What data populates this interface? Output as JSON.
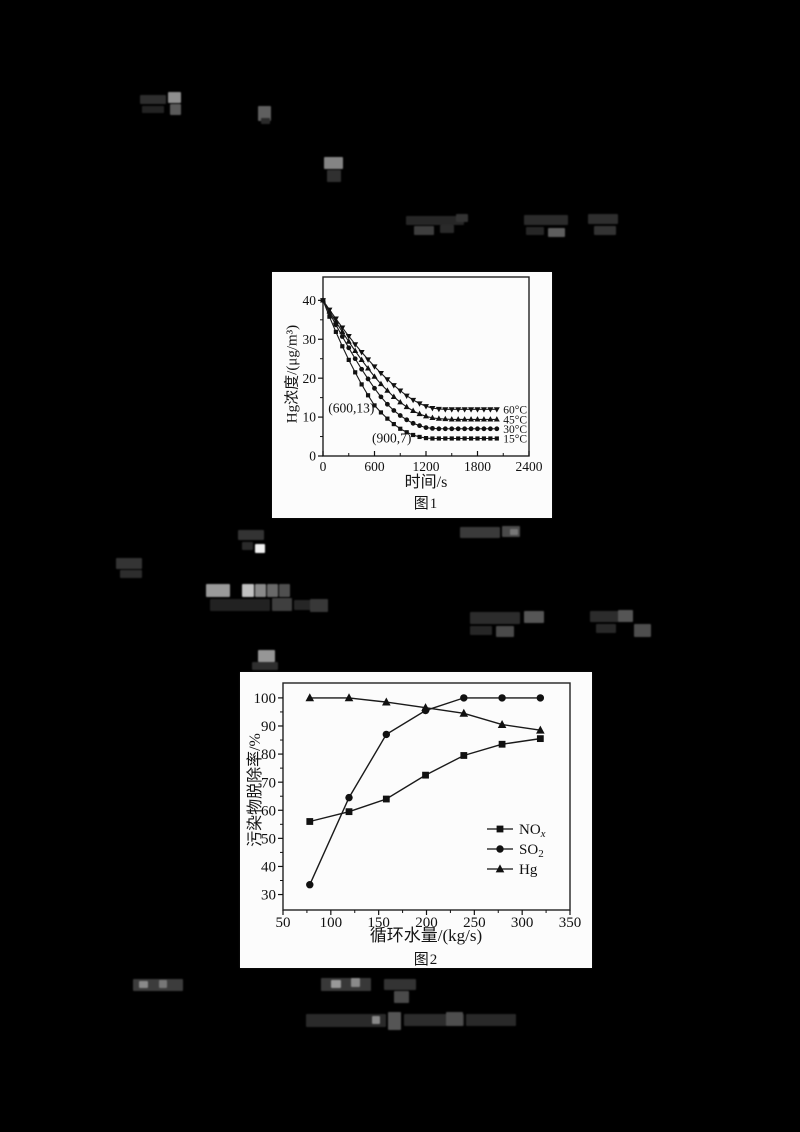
{
  "page": {
    "background_color": "#000000",
    "panel_color": "#fcfcfc",
    "ink_color": "#111111"
  },
  "chart_data": [
    {
      "type": "line",
      "title": "图1",
      "xlabel": "时间/s",
      "ylabel": "Hg浓度/(μg/m³)",
      "xlim": [
        0,
        2400
      ],
      "ylim": [
        0,
        46
      ],
      "xticks": [
        0,
        600,
        1200,
        1800,
        2400
      ],
      "xminor": [
        300,
        900,
        1500,
        2100
      ],
      "yticks": [
        0,
        10,
        20,
        30,
        40
      ],
      "yminor": [
        5,
        15,
        25,
        35
      ],
      "grid": false,
      "x": [
        0,
        75,
        150,
        225,
        300,
        375,
        450,
        525,
        600,
        675,
        750,
        825,
        900,
        975,
        1050,
        1125,
        1200,
        1275,
        1350,
        1425,
        1500,
        1575,
        1650,
        1725,
        1800,
        1875,
        1950,
        2025
      ],
      "series": [
        {
          "name": "60°C",
          "marker": "triangle-down",
          "label_y": 12,
          "values": [
            40,
            37.6,
            35.3,
            33,
            30.8,
            28.7,
            26.7,
            24.8,
            23,
            21.3,
            19.7,
            18.2,
            16.8,
            15.5,
            14.4,
            13.5,
            12.8,
            12.3,
            12.1,
            12,
            12,
            12,
            12,
            12,
            12,
            12,
            12,
            12
          ]
        },
        {
          "name": "45°C",
          "marker": "triangle-up",
          "label_y": 9.4,
          "values": [
            40,
            37.2,
            34.5,
            31.9,
            29.4,
            27,
            24.7,
            22.5,
            20.4,
            18.5,
            16.8,
            15.2,
            13.8,
            12.6,
            11.6,
            10.8,
            10.2,
            9.8,
            9.6,
            9.5,
            9.4,
            9.4,
            9.4,
            9.4,
            9.4,
            9.4,
            9.4,
            9.4
          ]
        },
        {
          "name": "30°C",
          "marker": "circle",
          "label_y": 7,
          "values": [
            40,
            36.8,
            33.7,
            30.7,
            27.8,
            25,
            22.3,
            19.8,
            17.4,
            15.2,
            13.3,
            11.7,
            10.4,
            9.3,
            8.4,
            7.8,
            7.3,
            7.1,
            7,
            7,
            7,
            7,
            7,
            7,
            7,
            7,
            7,
            7
          ]
        },
        {
          "name": "15°C",
          "marker": "square",
          "label_y": 4.5,
          "values": [
            40,
            35.8,
            31.9,
            28.2,
            24.7,
            21.5,
            18.4,
            15.6,
            13,
            11.2,
            9.6,
            8.2,
            7,
            6.1,
            5.4,
            4.9,
            4.6,
            4.5,
            4.5,
            4.5,
            4.5,
            4.5,
            4.5,
            4.5,
            4.5,
            4.5,
            4.5,
            4.5
          ]
        }
      ],
      "series_label_x": 2100,
      "annotations": [
        {
          "text": "(600,13)",
          "x": 330,
          "y": 12.3
        },
        {
          "text": "(900,7)",
          "x": 800,
          "y": 4.6
        }
      ]
    },
    {
      "type": "line",
      "title": "图2",
      "xlabel": "循环水量/(kg/s)",
      "ylabel": "污染物脱除率/%",
      "xlim": [
        50,
        350
      ],
      "ylim": [
        24.5,
        105.3
      ],
      "xticks": [
        50,
        100,
        150,
        200,
        250,
        300,
        350
      ],
      "xminor": [
        75,
        125,
        175,
        225,
        275,
        325
      ],
      "yticks": [
        30,
        40,
        50,
        60,
        70,
        80,
        90,
        100
      ],
      "yminor": [
        35,
        45,
        55,
        65,
        75,
        85,
        95
      ],
      "grid": false,
      "x": [
        78,
        119,
        158,
        199,
        239,
        279,
        319
      ],
      "series": [
        {
          "name": "NOx",
          "label_main": "NO",
          "label_sub": "x",
          "sub_italic": true,
          "marker": "square",
          "values": [
            56,
            59.5,
            64,
            72.5,
            79.5,
            83.5,
            85.5
          ]
        },
        {
          "name": "SO2",
          "label_main": "SO",
          "label_sub": "2",
          "sub_italic": false,
          "marker": "circle",
          "values": [
            33.5,
            64.5,
            87,
            95.5,
            100,
            100,
            100
          ]
        },
        {
          "name": "Hg",
          "label_main": "Hg",
          "label_sub": "",
          "sub_italic": false,
          "marker": "triangle-up",
          "values": [
            100,
            100,
            98.5,
            96.5,
            94.5,
            90.5,
            88.5
          ]
        }
      ],
      "legend": {
        "position": "inside-right"
      }
    }
  ]
}
